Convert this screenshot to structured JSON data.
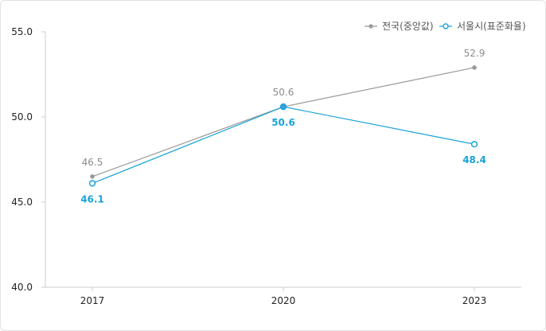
{
  "chart_data": {
    "type": "line",
    "categories": [
      "2017",
      "2020",
      "2023"
    ],
    "ylim": [
      40.0,
      55.0
    ],
    "yticks": [
      "55.0",
      "50.0",
      "45.0",
      "40.0"
    ],
    "ytick_values": [
      55.0,
      50.0,
      45.0,
      40.0
    ],
    "grid": false,
    "legend_position": "top-right",
    "series": [
      {
        "name": "전국(중앙값)",
        "values": [
          46.5,
          50.6,
          52.9
        ],
        "labels": [
          "46.5",
          "50.6",
          "52.9"
        ],
        "color": "#999999",
        "marker": "filled-circle",
        "label_position": "above"
      },
      {
        "name": "서울시(표준화율)",
        "values": [
          46.1,
          50.6,
          48.4
        ],
        "labels": [
          "46.1",
          "50.6",
          "48.4"
        ],
        "color": "#1aa3d9",
        "marker": "open-circle",
        "label_position": "below"
      }
    ]
  }
}
